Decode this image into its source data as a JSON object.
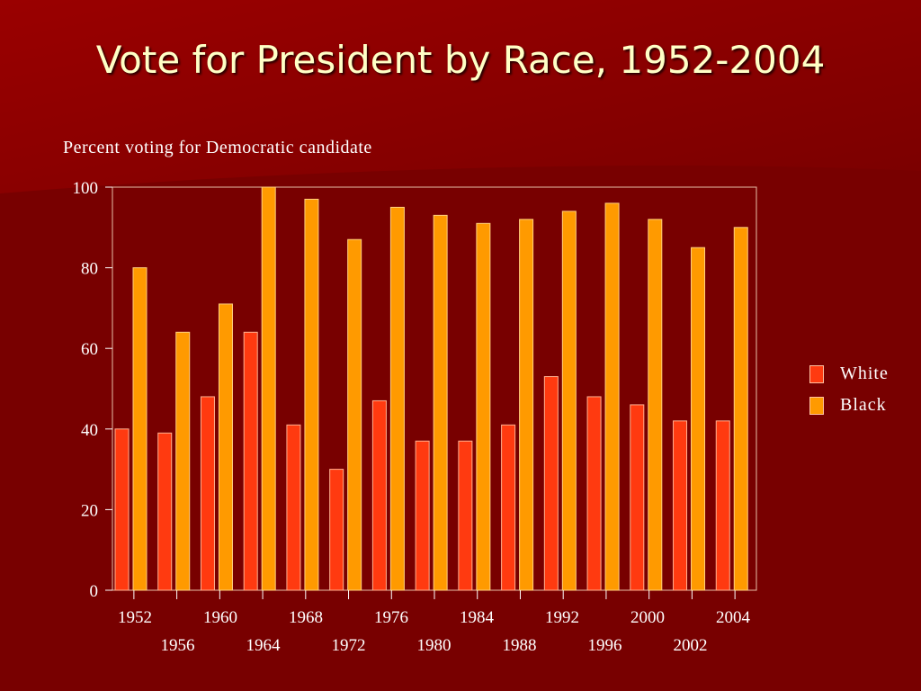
{
  "slide": {
    "title": "Vote for President by Race, 1952-2004",
    "subtitle": "Percent voting for Democratic candidate"
  },
  "colors": {
    "background": "#7a0000",
    "title": "#ffffc6",
    "white_series": "#ff3a10",
    "black_series": "#ff9a00"
  },
  "legend": {
    "white_label": "White",
    "black_label": "Black"
  },
  "chart_data": {
    "type": "bar",
    "title": "Vote for President by Race, 1952-2004",
    "ylabel": "Percent voting for Democratic candidate",
    "xlabel": "",
    "categories": [
      "1952",
      "1956",
      "1960",
      "1964",
      "1968",
      "1972",
      "1976",
      "1980",
      "1984",
      "1988",
      "1992",
      "1996",
      "2000",
      "2004"
    ],
    "series": [
      {
        "name": "White",
        "values": [
          40,
          39,
          48,
          64,
          41,
          30,
          47,
          37,
          37,
          41,
          53,
          48,
          46,
          42
        ]
      },
      {
        "name": "Black",
        "values": [
          80,
          64,
          71,
          100,
          97,
          87,
          95,
          93,
          91,
          92,
          94,
          96,
          92,
          90
        ]
      }
    ],
    "extra_black_bars": [
      {
        "label": "2002",
        "value": 85
      }
    ],
    "extra_white_bar_2002": 42,
    "x_tick_labels_row1": [
      "1952",
      "1960",
      "1968",
      "1976",
      "1984",
      "1992",
      "2000",
      "2004"
    ],
    "x_tick_labels_row2": [
      "1956",
      "1964",
      "1972",
      "1980",
      "1988",
      "1996",
      "2002"
    ],
    "y_ticks": [
      "0",
      "20",
      "40",
      "60",
      "80",
      "100"
    ],
    "ylim": [
      0,
      100
    ],
    "grid": false,
    "legend_position": "right"
  }
}
